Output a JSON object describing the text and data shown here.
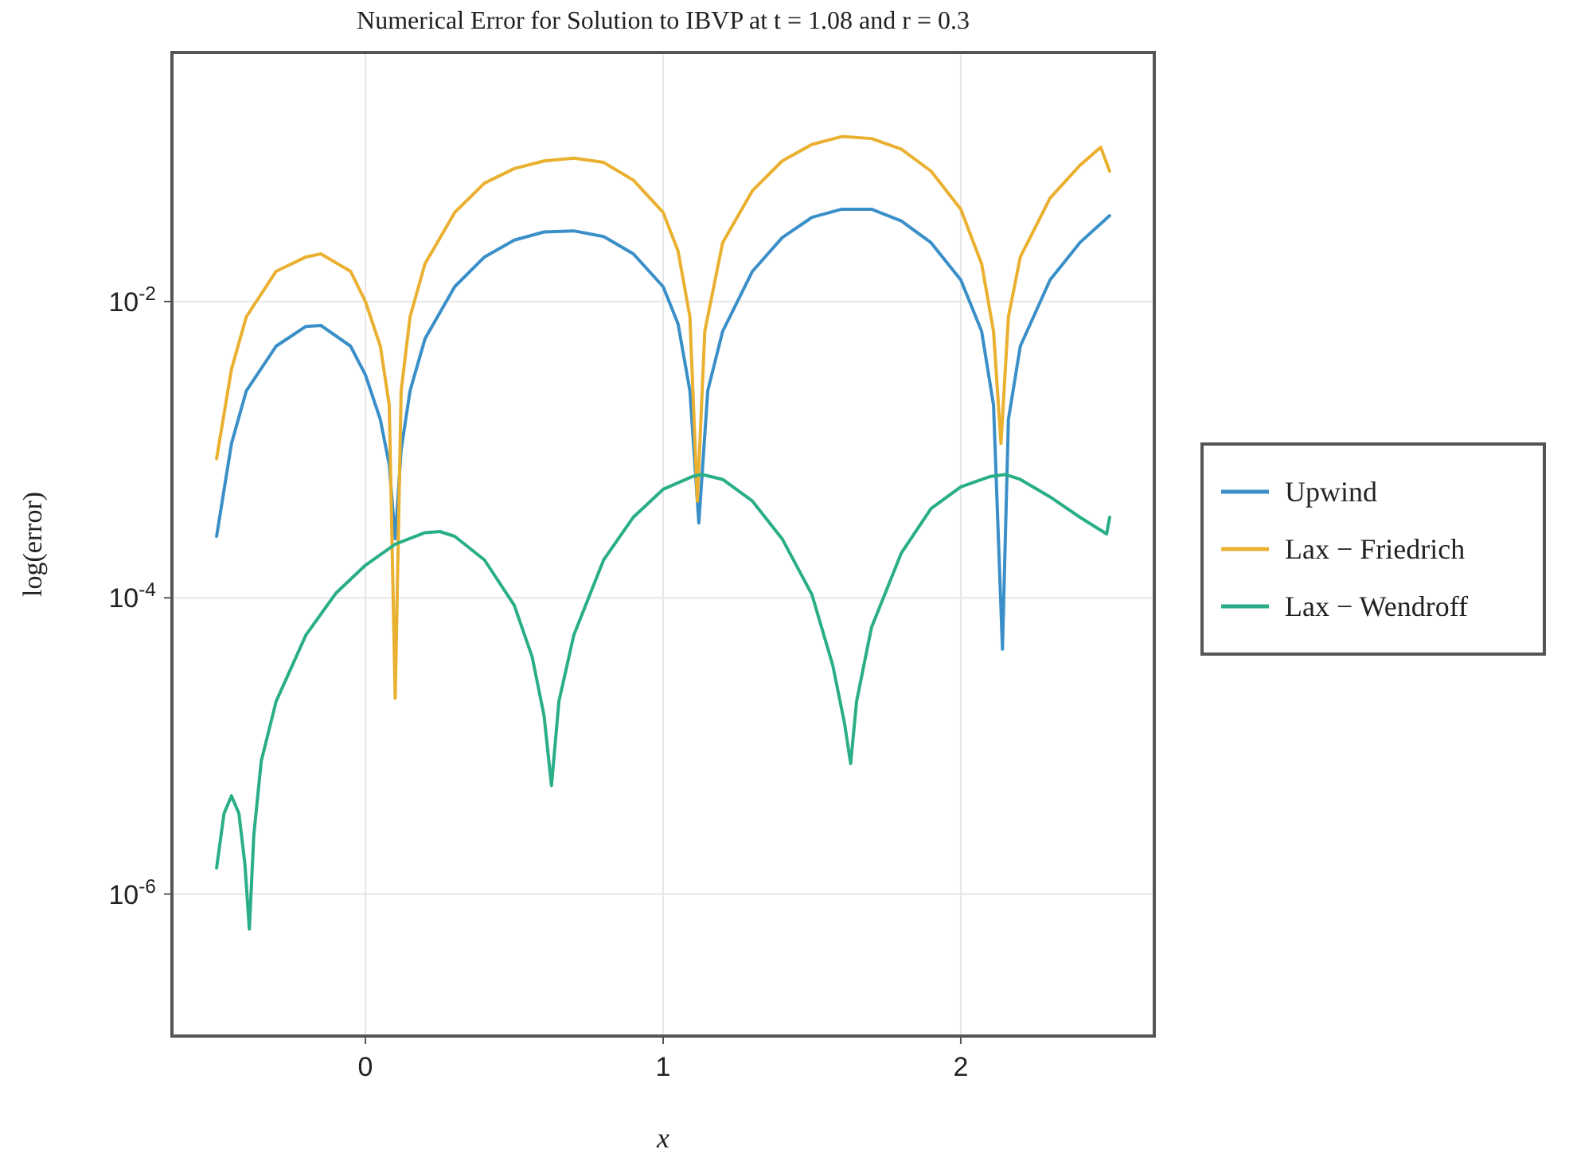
{
  "chart_data": {
    "type": "line",
    "title": "Numerical Error for Solution to IBVP at t = 1.08 and r = 0.3",
    "xlabel": "x",
    "ylabel": "log(error)",
    "log": "y",
    "grid": true,
    "legend": "right",
    "marker": "none",
    "line_style": "solid",
    "xlim": [
      -0.65,
      2.65
    ],
    "xticks": [
      0,
      1,
      2
    ],
    "ylim": [
      1.1e-07,
      0.48
    ],
    "yticks": [
      {
        "value": 1e-06,
        "label": "10$^{-6}$"
      },
      {
        "value": 0.0001,
        "label": "10$^{-4}$"
      },
      {
        "value": 0.01,
        "label": "10$^{-2}$"
      }
    ],
    "series": [
      {
        "name": "Upwind",
        "color": "#3a8fc8",
        "x": [
          -0.5,
          -0.45,
          -0.4,
          -0.3,
          -0.2,
          -0.15,
          -0.05,
          0.0,
          0.05,
          0.08,
          0.1,
          0.12,
          0.15,
          0.2,
          0.3,
          0.4,
          0.5,
          0.6,
          0.7,
          0.8,
          0.9,
          1.0,
          1.05,
          1.09,
          1.12,
          1.15,
          1.2,
          1.3,
          1.4,
          1.5,
          1.6,
          1.7,
          1.8,
          1.9,
          2.0,
          2.07,
          2.11,
          2.14,
          2.16,
          2.2,
          2.3,
          2.4,
          2.5
        ],
        "values": [
          0.00026,
          0.0011,
          0.0025,
          0.005,
          0.0068,
          0.0069,
          0.005,
          0.0032,
          0.0016,
          0.00079,
          0.00025,
          0.001,
          0.0025,
          0.0056,
          0.0126,
          0.02,
          0.026,
          0.0295,
          0.03,
          0.0275,
          0.021,
          0.0126,
          0.0071,
          0.0025,
          0.00032,
          0.0025,
          0.0063,
          0.016,
          0.027,
          0.037,
          0.042,
          0.042,
          0.035,
          0.025,
          0.014,
          0.0063,
          0.002,
          4.5e-05,
          0.0016,
          0.005,
          0.014,
          0.025,
          0.038
        ]
      },
      {
        "name": "Lax − Friedrich",
        "color": "#eab030",
        "x": [
          -0.5,
          -0.45,
          -0.4,
          -0.3,
          -0.2,
          -0.15,
          -0.05,
          0.0,
          0.05,
          0.08,
          0.1,
          0.12,
          0.15,
          0.2,
          0.3,
          0.4,
          0.5,
          0.6,
          0.7,
          0.8,
          0.9,
          1.0,
          1.05,
          1.09,
          1.115,
          1.14,
          1.2,
          1.3,
          1.4,
          1.5,
          1.6,
          1.7,
          1.8,
          1.9,
          2.0,
          2.07,
          2.11,
          2.135,
          2.16,
          2.2,
          2.3,
          2.4,
          2.47,
          2.5
        ],
        "values": [
          0.00087,
          0.0035,
          0.0079,
          0.016,
          0.02,
          0.021,
          0.016,
          0.01,
          0.005,
          0.002,
          2.1e-05,
          0.0025,
          0.0079,
          0.018,
          0.04,
          0.063,
          0.079,
          0.089,
          0.093,
          0.087,
          0.066,
          0.04,
          0.022,
          0.0079,
          0.00045,
          0.0063,
          0.025,
          0.056,
          0.089,
          0.115,
          0.13,
          0.126,
          0.107,
          0.076,
          0.042,
          0.018,
          0.0063,
          0.0011,
          0.0079,
          0.02,
          0.05,
          0.083,
          0.11,
          0.076
        ]
      },
      {
        "name": "Lax − Wendroff",
        "color": "#2aae87",
        "x": [
          -0.5,
          -0.475,
          -0.45,
          -0.425,
          -0.405,
          -0.39,
          -0.375,
          -0.35,
          -0.3,
          -0.2,
          -0.1,
          0.0,
          0.1,
          0.2,
          0.25,
          0.3,
          0.4,
          0.5,
          0.56,
          0.6,
          0.625,
          0.65,
          0.7,
          0.8,
          0.9,
          1.0,
          1.1,
          1.13,
          1.2,
          1.3,
          1.4,
          1.5,
          1.57,
          1.61,
          1.63,
          1.65,
          1.7,
          1.8,
          1.9,
          2.0,
          2.1,
          2.15,
          2.2,
          2.3,
          2.4,
          2.49,
          2.5
        ],
        "values": [
          1.5e-06,
          3.5e-06,
          4.6e-06,
          3.5e-06,
          1.6e-06,
          5.8e-07,
          2.5e-06,
          7.9e-06,
          2e-05,
          5.6e-05,
          0.000107,
          0.000166,
          0.00023,
          0.000275,
          0.00028,
          0.00026,
          0.00018,
          8.9e-05,
          4e-05,
          1.6e-05,
          5.4e-06,
          2e-05,
          5.6e-05,
          0.00018,
          0.00035,
          0.00054,
          0.00066,
          0.00068,
          0.00063,
          0.00045,
          0.00025,
          0.000105,
          3.5e-05,
          1.4e-05,
          7.6e-06,
          2e-05,
          6.3e-05,
          0.0002,
          0.0004,
          0.00056,
          0.00066,
          0.00068,
          0.00063,
          0.00048,
          0.00035,
          0.00027,
          0.00035
        ]
      }
    ]
  }
}
